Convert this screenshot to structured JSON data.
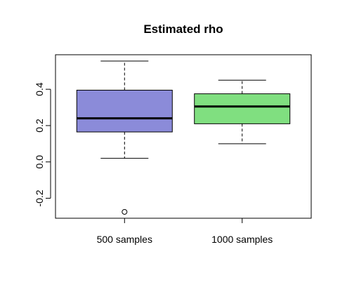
{
  "chart_data": {
    "type": "boxplot",
    "title": "Estimated rho",
    "xlabel": "",
    "ylabel": "",
    "categories": [
      "500 samples",
      "1000 samples"
    ],
    "ylim": [
      -0.31,
      0.59
    ],
    "yticks": [
      -0.2,
      0.0,
      0.2,
      0.4
    ],
    "ytick_labels": [
      "-0.2",
      "0.0",
      "0.2",
      "0.4"
    ],
    "grid": false,
    "legend": "none",
    "boxes": [
      {
        "name": "500 samples",
        "whisker_low": 0.02,
        "q1": 0.165,
        "median": 0.24,
        "q3": 0.395,
        "whisker_high": 0.555,
        "outliers": [
          -0.275
        ],
        "color": "#8b8bd9"
      },
      {
        "name": "1000 samples",
        "whisker_low": 0.1,
        "q1": 0.21,
        "median": 0.305,
        "q3": 0.375,
        "whisker_high": 0.45,
        "outliers": [],
        "color": "#80df80"
      }
    ]
  }
}
